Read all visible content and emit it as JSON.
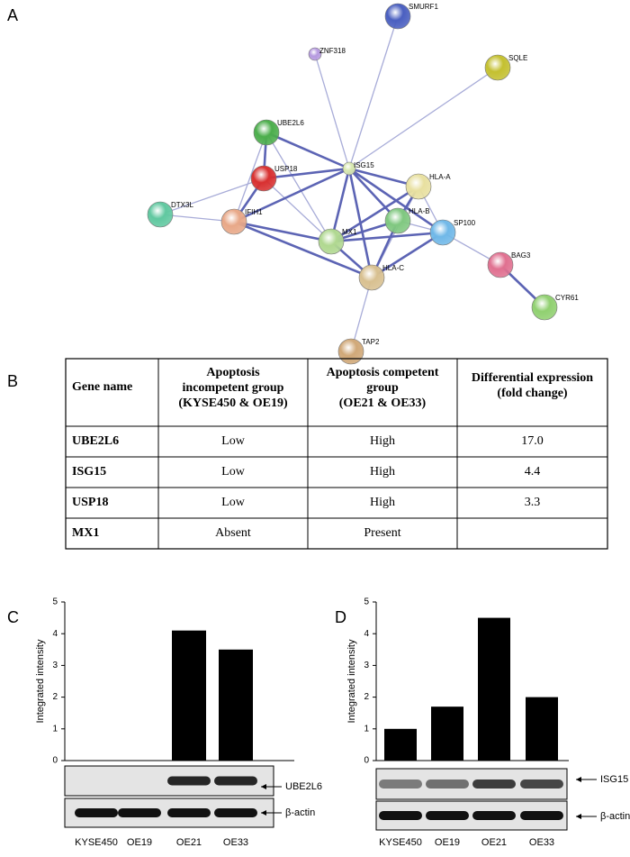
{
  "panel_labels": [
    "A",
    "B",
    "C",
    "D"
  ],
  "network": {
    "nodes": [
      {
        "label": "SMURF1"
      },
      {
        "label": "ZNF318"
      },
      {
        "label": "SQLE"
      },
      {
        "label": "UBE2L6"
      },
      {
        "label": "USP18"
      },
      {
        "label": "ISG15"
      },
      {
        "label": "HLA-A"
      },
      {
        "label": "DTX3L"
      },
      {
        "label": "IFIH1"
      },
      {
        "label": "HLA-B"
      },
      {
        "label": "SP100"
      },
      {
        "label": "MX1"
      },
      {
        "label": "HLA-C"
      },
      {
        "label": "BAG3"
      },
      {
        "label": "CYR61"
      },
      {
        "label": "TAP2"
      }
    ]
  },
  "table": {
    "header": [
      "Gene name",
      "Apoptosis incompetent group (KYSE450 & OE19)",
      "Apoptosis competent group (OE21 & OE33)",
      "Differential expression (fold change)"
    ],
    "rows": [
      [
        "UBE2L6",
        "Low",
        "High",
        "17.0"
      ],
      [
        "ISG15",
        "Low",
        "High",
        "4.4"
      ],
      [
        "USP18",
        "Low",
        "High",
        "3.3"
      ],
      [
        "MX1",
        "Absent",
        "Present"
      ]
    ]
  },
  "chart_data": [
    {
      "type": "bar",
      "y_label": "Integrated intensity",
      "categories": [
        "KYSE450",
        "OE19",
        "OE21",
        "OE33"
      ],
      "values": [
        0,
        0,
        4.1,
        3.5
      ],
      "color": "#000000",
      "ylim": [
        0,
        5
      ],
      "yticks": [
        0,
        1,
        2,
        3,
        4,
        5
      ],
      "blot_labels": [
        "UBE2L6",
        "β-actin"
      ]
    },
    {
      "type": "bar",
      "y_label": "Integrated intensity",
      "categories": [
        "KYSE450",
        "OE19",
        "OE21",
        "OE33"
      ],
      "values": [
        1,
        1.7,
        4.5,
        2
      ],
      "color": "#000000",
      "ylim": [
        0,
        5
      ],
      "yticks": [
        0,
        1,
        2,
        3,
        4,
        5
      ],
      "blot_labels": [
        "ISG15",
        "β-actin"
      ]
    }
  ]
}
